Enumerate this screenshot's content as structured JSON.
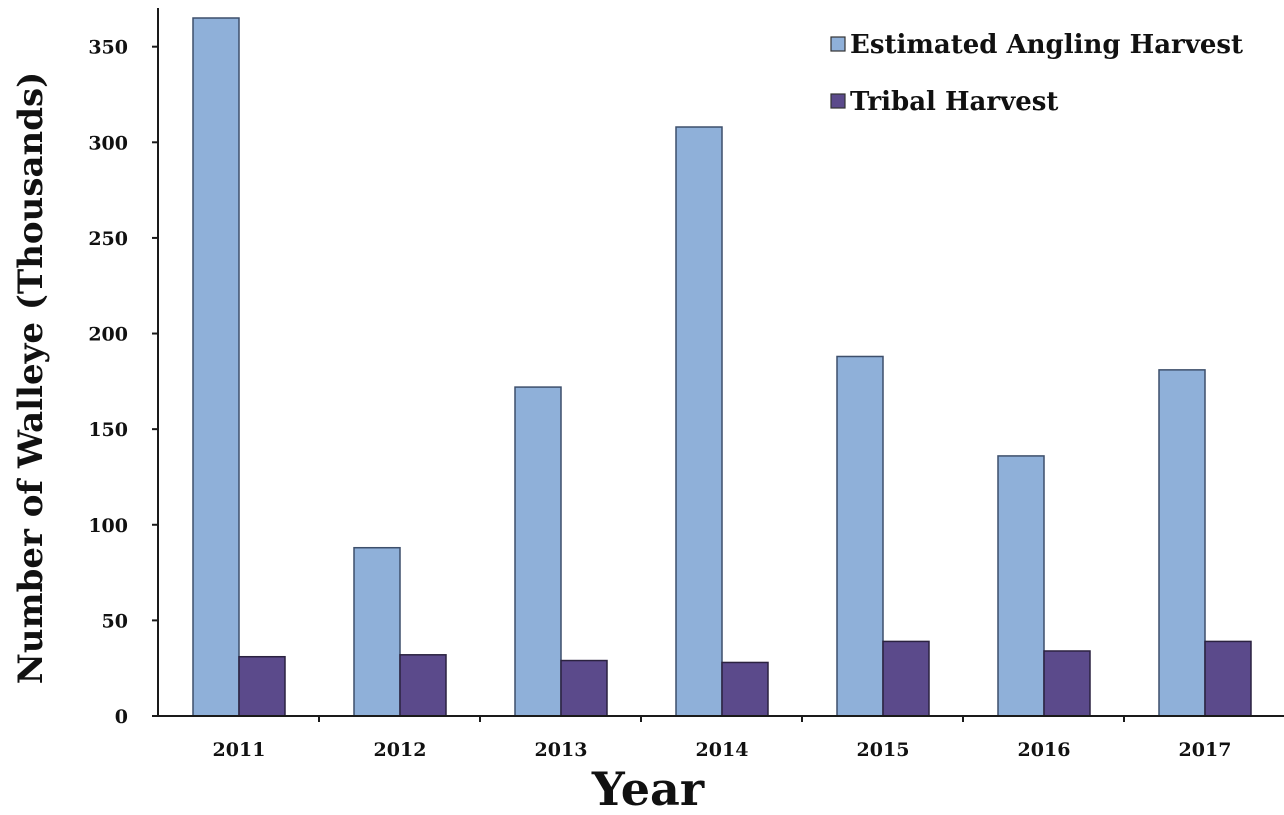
{
  "chart_data": {
    "type": "bar",
    "title": "",
    "xlabel": "Year",
    "ylabel": "Number of Walleye (Thousands)",
    "categories": [
      "2011",
      "2012",
      "2013",
      "2014",
      "2015",
      "2016",
      "2017"
    ],
    "series": [
      {
        "name": "Estimated Angling Harvest",
        "color": "#8fb0d9",
        "values": [
          365,
          88,
          172,
          308,
          188,
          136,
          181
        ]
      },
      {
        "name": "Tribal Harvest",
        "color": "#5b4a8b",
        "values": [
          31,
          32,
          29,
          28,
          39,
          34,
          39
        ]
      }
    ],
    "ylim": [
      0,
      365
    ],
    "yticks": [
      0,
      50,
      100,
      150,
      200,
      250,
      300,
      350
    ],
    "grid": false,
    "legend_position": "top-right"
  }
}
